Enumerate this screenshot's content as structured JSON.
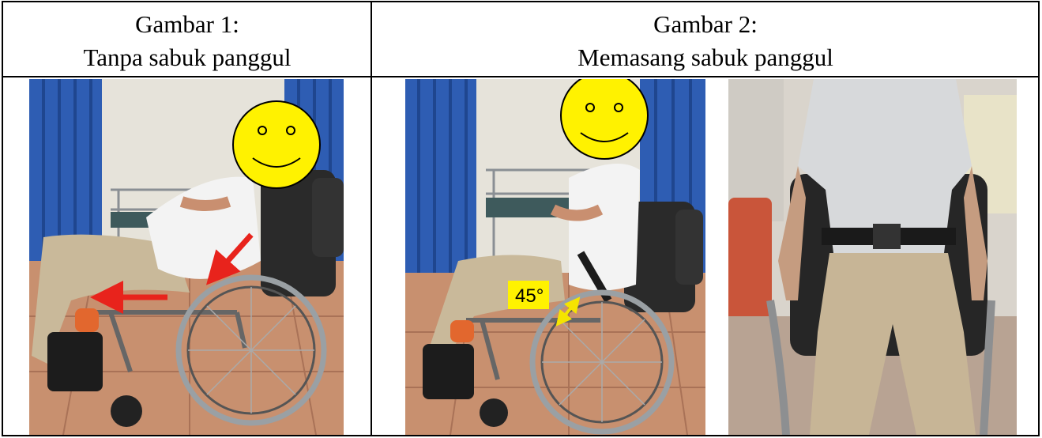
{
  "figures": [
    {
      "title": "Gambar 1:",
      "caption": "Tanpa sabuk panggul"
    },
    {
      "title": "Gambar 2:",
      "caption": "Memasang sabuk panggul",
      "annotation": "45°"
    }
  ]
}
